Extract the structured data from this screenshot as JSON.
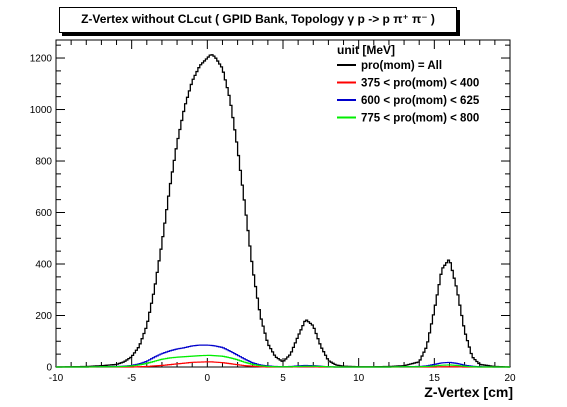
{
  "chart_data": {
    "type": "line",
    "title": "Z-Vertex without CLcut ( GPID Bank, Topology γ p -> p π⁺ π⁻ )",
    "xlabel": "Z-Vertex [cm]",
    "ylabel": "",
    "xlim": [
      -10,
      20
    ],
    "ylim": [
      0,
      1270
    ],
    "x_ticks": [
      "-10",
      "-5",
      "0",
      "5",
      "10",
      "15",
      "20"
    ],
    "y_ticks": [
      "0",
      "200",
      "400",
      "600",
      "800",
      "1000",
      "1200"
    ],
    "grid": false,
    "legend_title": "unit [MeV]",
    "legend_position": "top-right",
    "x": [
      -10,
      -9,
      -8,
      -7,
      -6,
      -5.5,
      -5,
      -4.5,
      -4,
      -3.5,
      -3,
      -2.5,
      -2,
      -1.5,
      -1,
      -0.5,
      0,
      0.25,
      0.5,
      1,
      1.5,
      2,
      2.5,
      3,
      3.5,
      4,
      4.5,
      5,
      5.5,
      6,
      6.5,
      7,
      7.5,
      8,
      8.5,
      9,
      10,
      11,
      12,
      13,
      14,
      14.5,
      15,
      15.5,
      16,
      16.5,
      17,
      17.5,
      18,
      19,
      20
    ],
    "series": [
      {
        "name": "pro(mom) = All",
        "color": "#000000",
        "values": [
          0,
          1,
          2,
          5,
          10,
          20,
          40,
          80,
          160,
          300,
          480,
          690,
          870,
          1010,
          1110,
          1170,
          1200,
          1215,
          1205,
          1160,
          1040,
          850,
          620,
          380,
          200,
          90,
          40,
          20,
          50,
          120,
          185,
          160,
          80,
          25,
          8,
          3,
          1,
          1,
          2,
          5,
          20,
          80,
          220,
          380,
          420,
          300,
          140,
          40,
          10,
          2,
          0
        ]
      },
      {
        "name": "375 < pro(mom) < 400",
        "color": "#ff0000",
        "values": [
          0,
          0,
          0,
          0,
          0,
          0,
          0,
          1,
          2,
          4,
          6,
          9,
          12,
          15,
          18,
          19,
          20,
          20,
          19,
          17,
          13,
          9,
          5,
          3,
          1,
          0,
          0,
          0,
          0,
          1,
          1,
          1,
          0,
          0,
          0,
          0,
          0,
          0,
          0,
          0,
          0,
          0,
          0,
          1,
          1,
          1,
          0,
          0,
          0,
          0,
          0
        ]
      },
      {
        "name": "600 < pro(mom) < 625",
        "color": "#0000cc",
        "values": [
          0,
          0,
          0,
          1,
          2,
          3,
          6,
          12,
          22,
          38,
          52,
          62,
          70,
          75,
          82,
          85,
          85,
          84,
          82,
          76,
          62,
          46,
          30,
          16,
          8,
          4,
          2,
          1,
          2,
          4,
          6,
          5,
          3,
          1,
          0,
          0,
          0,
          0,
          0,
          1,
          2,
          4,
          10,
          16,
          18,
          14,
          7,
          3,
          1,
          0,
          0
        ]
      },
      {
        "name": "775 < pro(mom) < 800",
        "color": "#00ee00",
        "values": [
          0,
          0,
          0,
          1,
          1,
          2,
          4,
          8,
          14,
          22,
          30,
          35,
          38,
          40,
          42,
          44,
          45,
          45,
          44,
          42,
          36,
          28,
          18,
          10,
          5,
          2,
          1,
          1,
          1,
          2,
          3,
          3,
          2,
          1,
          0,
          0,
          0,
          0,
          0,
          1,
          1,
          2,
          4,
          7,
          8,
          6,
          3,
          1,
          0,
          0,
          0
        ]
      }
    ]
  }
}
